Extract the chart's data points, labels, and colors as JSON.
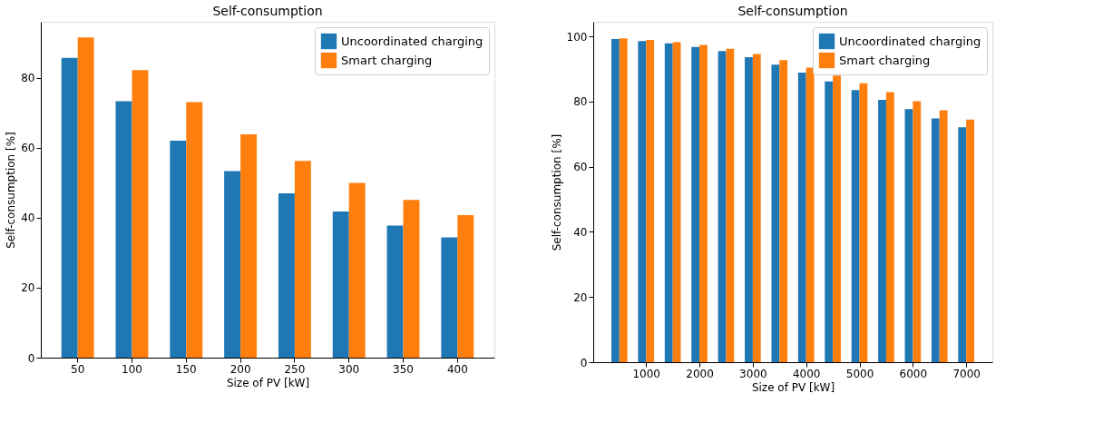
{
  "chart_data": [
    {
      "type": "bar",
      "title": "Self-consumption",
      "xlabel": "Size of PV [kW]",
      "ylabel": "Self-consumption [%]",
      "categories": [
        "50",
        "100",
        "150",
        "200",
        "250",
        "300",
        "350",
        "400"
      ],
      "series": [
        {
          "name": "Uncoordinated charging",
          "color": "#1f77b4",
          "values": [
            85.8,
            73.4,
            62.1,
            53.4,
            47.0,
            41.8,
            37.8,
            34.4
          ]
        },
        {
          "name": "Smart charging",
          "color": "#ff7f0e",
          "values": [
            91.6,
            82.3,
            73.1,
            63.9,
            56.3,
            50.0,
            45.1,
            40.8
          ]
        }
      ],
      "ylim": [
        0,
        96.1
      ],
      "yticks": [
        0,
        20,
        40,
        60,
        80
      ],
      "legend": "top right",
      "grid": false
    },
    {
      "type": "bar",
      "title": "Self-consumption",
      "xlabel": "Size of PV [kW]",
      "ylabel": "Self-consumption [%]",
      "x": [
        500,
        1000,
        1500,
        2000,
        2500,
        3000,
        3500,
        4000,
        4500,
        5000,
        5500,
        6000,
        6500,
        7000
      ],
      "series": [
        {
          "name": "Uncoordinated charging",
          "color": "#1f77b4",
          "values": [
            99.2,
            98.6,
            97.9,
            96.8,
            95.5,
            93.6,
            91.3,
            88.9,
            86.2,
            83.5,
            80.5,
            77.7,
            74.8,
            72.1
          ]
        },
        {
          "name": "Smart charging",
          "color": "#ff7f0e",
          "values": [
            99.4,
            98.9,
            98.2,
            97.4,
            96.2,
            94.6,
            92.7,
            90.4,
            88.0,
            85.6,
            82.9,
            80.1,
            77.3,
            74.5
          ]
        }
      ],
      "xlim": [
        10,
        7490
      ],
      "xticks": [
        1000,
        2000,
        3000,
        4000,
        5000,
        6000,
        7000
      ],
      "ylim": [
        0,
        104.5
      ],
      "yticks": [
        0,
        20,
        40,
        60,
        80,
        100
      ],
      "legend": "top right",
      "grid": false
    }
  ]
}
